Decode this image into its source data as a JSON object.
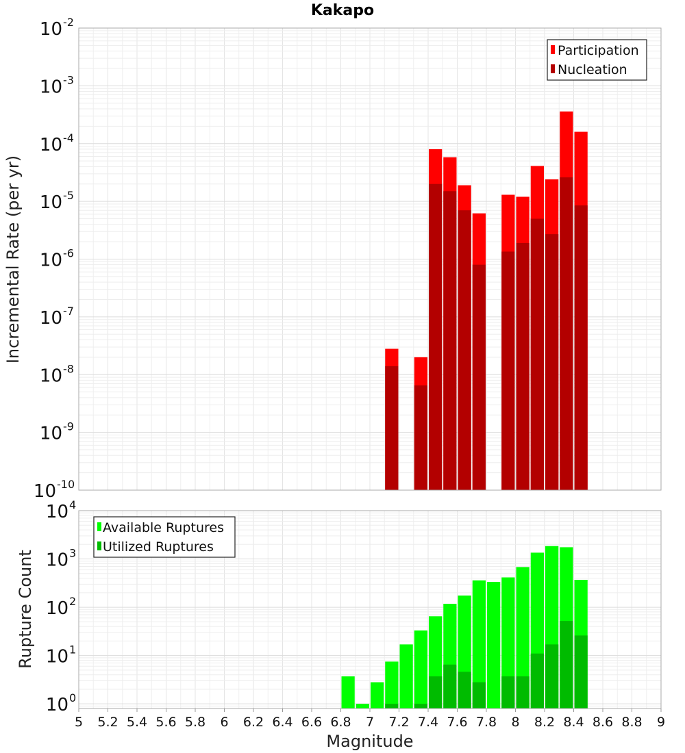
{
  "chart_data": [
    {
      "type": "bar",
      "title": "Kakapo",
      "xlabel": "",
      "ylabel": "Incremental Rate (per yr)",
      "yscale": "log",
      "ylim": [
        1e-10,
        0.01
      ],
      "xlim": [
        5,
        9
      ],
      "bar_width": 0.1,
      "y_ticks": [
        {
          "base": "10",
          "exp": "-10",
          "value": 1e-10
        },
        {
          "base": "10",
          "exp": "-9",
          "value": 1e-09
        },
        {
          "base": "10",
          "exp": "-8",
          "value": 1e-08
        },
        {
          "base": "10",
          "exp": "-7",
          "value": 1e-07
        },
        {
          "base": "10",
          "exp": "-6",
          "value": 1e-06
        },
        {
          "base": "10",
          "exp": "-5",
          "value": 1e-05
        },
        {
          "base": "10",
          "exp": "-4",
          "value": 0.0001
        },
        {
          "base": "10",
          "exp": "-3",
          "value": 0.001
        },
        {
          "base": "10",
          "exp": "-2",
          "value": 0.01
        }
      ],
      "legend_position": "top-right",
      "grid": true,
      "series": [
        {
          "name": "Participation",
          "color": "#ff0000",
          "x": [
            7.15,
            7.35,
            7.45,
            7.55,
            7.65,
            7.75,
            7.95,
            8.05,
            8.15,
            8.25,
            8.35,
            8.45
          ],
          "values": [
            2.8e-08,
            2e-08,
            8e-05,
            5.8e-05,
            1.9e-05,
            6.2e-06,
            1.3e-05,
            1.2e-05,
            4.1e-05,
            2.4e-05,
            0.00036,
            0.00016
          ]
        },
        {
          "name": "Nucleation",
          "color": "#b30000",
          "x": [
            7.15,
            7.35,
            7.45,
            7.55,
            7.65,
            7.75,
            7.95,
            8.05,
            8.15,
            8.25,
            8.35,
            8.45
          ],
          "values": [
            1.4e-08,
            6.5e-09,
            2e-05,
            1.5e-05,
            7e-06,
            8e-07,
            1.35e-06,
            1.9e-06,
            5e-06,
            2.7e-06,
            2.6e-05,
            8.5e-06
          ]
        }
      ]
    },
    {
      "type": "bar",
      "title": "",
      "xlabel": "Magnitude",
      "ylabel": "Rupture Count",
      "yscale": "log",
      "ylim": [
        0.8,
        10000
      ],
      "xlim": [
        5,
        9
      ],
      "bar_width": 0.1,
      "y_ticks": [
        {
          "base": "10",
          "exp": "0",
          "value": 1
        },
        {
          "base": "10",
          "exp": "1",
          "value": 10
        },
        {
          "base": "10",
          "exp": "2",
          "value": 100
        },
        {
          "base": "10",
          "exp": "3",
          "value": 1000
        },
        {
          "base": "10",
          "exp": "4",
          "value": 10000
        }
      ],
      "x_ticks": [
        "5",
        "5.2",
        "5.4",
        "5.6",
        "5.8",
        "6",
        "6.2",
        "6.4",
        "6.6",
        "6.8",
        "7",
        "7.2",
        "7.4",
        "7.6",
        "7.8",
        "8",
        "8.2",
        "8.4",
        "8.6",
        "8.8",
        "9"
      ],
      "legend_position": "top-left",
      "grid": true,
      "series": [
        {
          "name": "Available Ruptures",
          "color": "#00ff00",
          "x": [
            6.85,
            6.95,
            7.05,
            7.15,
            7.25,
            7.35,
            7.45,
            7.55,
            7.65,
            7.75,
            7.85,
            7.95,
            8.05,
            8.15,
            8.25,
            8.35,
            8.45
          ],
          "values": [
            3.7,
            1.0,
            2.8,
            7.5,
            17,
            33,
            65,
            118,
            175,
            360,
            335,
            415,
            680,
            1350,
            1850,
            1750,
            370
          ]
        },
        {
          "name": "Utilized Ruptures",
          "color": "#00bb00",
          "x": [
            7.15,
            7.35,
            7.45,
            7.55,
            7.65,
            7.75,
            7.95,
            8.05,
            8.15,
            8.25,
            8.35,
            8.45
          ],
          "values": [
            1.0,
            1.0,
            3.7,
            6.5,
            4.6,
            2.8,
            3.7,
            3.7,
            11,
            17,
            52,
            26
          ]
        }
      ]
    }
  ]
}
